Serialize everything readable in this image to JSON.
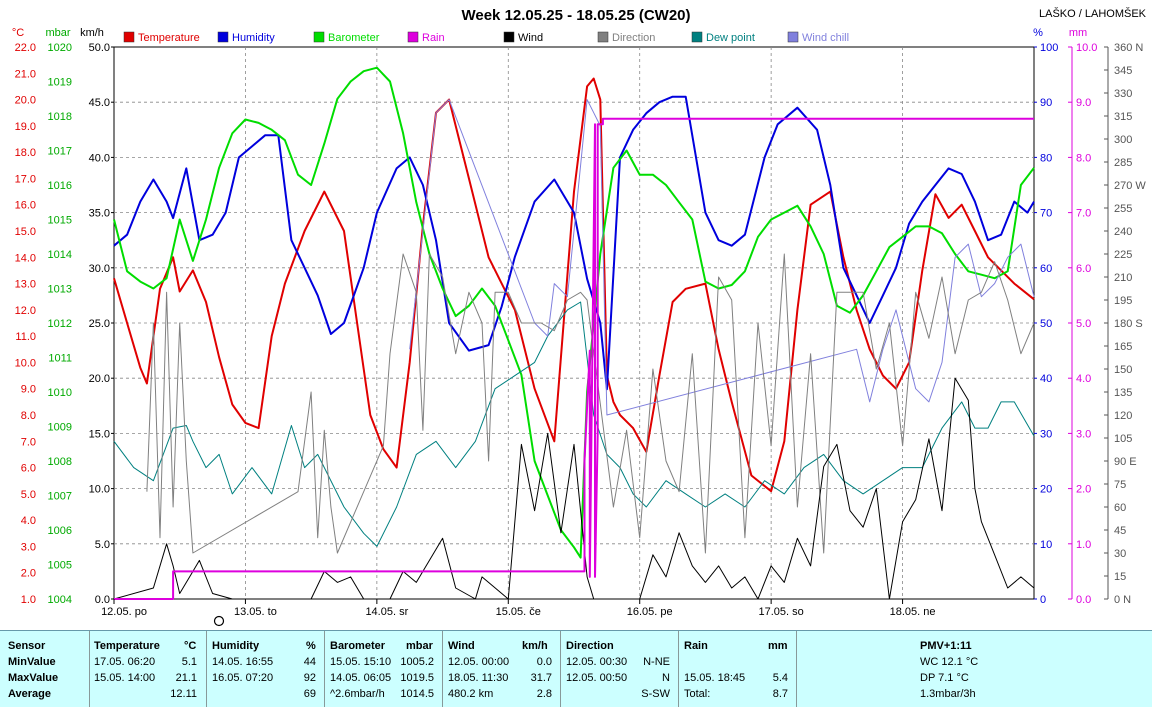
{
  "chart_data": {
    "type": "line",
    "title": "Week 12.05.25 - 18.05.25 (CW20)",
    "station": "LAŠKO / LAHOMŠEK",
    "legend": [
      {
        "label": "Temperature",
        "color": "#e00000"
      },
      {
        "label": "Humidity",
        "color": "#0000dd"
      },
      {
        "label": "Barometer",
        "color": "#00dd00"
      },
      {
        "label": "Rain",
        "color": "#dd00dd"
      },
      {
        "label": "Wind",
        "color": "#000000"
      },
      {
        "label": "Direction",
        "color": "#808080"
      },
      {
        "label": "Dew point",
        "color": "#008080"
      },
      {
        "label": "Wind chill",
        "color": "#8080dd"
      }
    ],
    "x_ticks": [
      "12.05. po",
      "13.05. to",
      "14.05. sr",
      "15.05. če",
      "16.05. pe",
      "17.05. so",
      "18.05. ne"
    ],
    "axes": {
      "temp": {
        "unit": "°C",
        "ylim": [
          1.0,
          22.0
        ],
        "ticks": [
          "22.0",
          "21.0",
          "20.0",
          "19.0",
          "18.0",
          "17.0",
          "16.0",
          "15.0",
          "14.0",
          "13.0",
          "12.0",
          "11.0",
          "10.0",
          "9.0",
          "8.0",
          "7.0",
          "6.0",
          "5.0",
          "4.0",
          "3.0",
          "2.0",
          "1.0"
        ]
      },
      "baro": {
        "unit": "mbar",
        "ylim": [
          1004,
          1020
        ],
        "ticks": [
          "1020",
          "1019",
          "1018",
          "1017",
          "1016",
          "1015",
          "1014",
          "1013",
          "1012",
          "1011",
          "1010",
          "1009",
          "1008",
          "1007",
          "1006",
          "1005",
          "1004"
        ]
      },
      "wind": {
        "unit": "km/h",
        "ylim": [
          0,
          50
        ],
        "ticks": [
          "50.0",
          "45.0",
          "40.0",
          "35.0",
          "30.0",
          "25.0",
          "20.0",
          "15.0",
          "10.0",
          "5.0",
          "0.0"
        ]
      },
      "hum": {
        "unit": "%",
        "ylim": [
          0,
          100
        ],
        "ticks": [
          "100",
          "90",
          "80",
          "70",
          "60",
          "50",
          "40",
          "30",
          "20",
          "10",
          "0"
        ]
      },
      "rain": {
        "unit": "mm",
        "ylim": [
          0,
          10
        ],
        "ticks": [
          "10.0",
          "9.0",
          "8.0",
          "7.0",
          "6.0",
          "5.0",
          "4.0",
          "3.0",
          "2.0",
          "1.0",
          "0.0"
        ]
      },
      "dir": {
        "ylim": [
          0,
          360
        ],
        "ticks": [
          "360 N",
          "345",
          "330",
          "315",
          "300",
          "285",
          "270 W",
          "255",
          "240",
          "225",
          "210",
          "195",
          "180 S",
          "165",
          "150",
          "135",
          "120",
          "105",
          "90 E",
          "75",
          "60",
          "45",
          "30",
          "15",
          "0 N"
        ]
      }
    },
    "x_range_days": [
      0,
      7
    ],
    "series": [
      {
        "name": "Temperature",
        "axis": "temp",
        "color": "#e00000",
        "x": [
          0,
          0.1,
          0.2,
          0.25,
          0.35,
          0.45,
          0.5,
          0.6,
          0.7,
          0.8,
          0.9,
          1.0,
          1.1,
          1.2,
          1.3,
          1.45,
          1.6,
          1.75,
          1.85,
          1.95,
          2.05,
          2.15,
          2.25,
          2.35,
          2.45,
          2.55,
          2.7,
          2.85,
          2.95,
          3.05,
          3.2,
          3.35,
          3.5,
          3.6,
          3.65,
          3.7,
          3.75,
          3.8,
          3.85,
          3.95,
          4.05,
          4.15,
          4.25,
          4.35,
          4.5,
          4.6,
          4.7,
          4.85,
          5.0,
          5.1,
          5.2,
          5.3,
          5.45,
          5.55,
          5.65,
          5.75,
          5.85,
          5.95,
          6.05,
          6.15,
          6.25,
          6.35,
          6.45,
          6.55,
          6.65,
          6.75,
          6.85,
          7.0
        ],
        "y": [
          13.2,
          11.5,
          9.8,
          9.2,
          12.8,
          14.0,
          12.7,
          13.5,
          12.3,
          10.2,
          8.4,
          7.7,
          7.5,
          11.0,
          13.0,
          15.0,
          16.5,
          15.0,
          11.5,
          8.0,
          6.7,
          6.0,
          10.0,
          15.2,
          19.5,
          20.0,
          17.0,
          14.0,
          13.0,
          12.0,
          9.0,
          7.0,
          16.5,
          20.5,
          20.8,
          20.0,
          9.5,
          8.5,
          8.0,
          7.5,
          6.6,
          9.5,
          12.3,
          12.8,
          13.0,
          10.5,
          8.5,
          5.7,
          5.1,
          7.0,
          12.0,
          16.0,
          16.5,
          14.0,
          12.0,
          10.5,
          9.5,
          9.0,
          10.0,
          13.5,
          16.4,
          15.5,
          16.0,
          15.0,
          14.0,
          13.5,
          13.0,
          12.4
        ]
      },
      {
        "name": "Humidity",
        "axis": "hum",
        "color": "#0000dd",
        "x": [
          0,
          0.1,
          0.2,
          0.3,
          0.4,
          0.45,
          0.55,
          0.65,
          0.75,
          0.85,
          0.95,
          1.05,
          1.15,
          1.25,
          1.35,
          1.45,
          1.55,
          1.65,
          1.75,
          1.9,
          2.0,
          2.15,
          2.25,
          2.35,
          2.45,
          2.55,
          2.7,
          2.85,
          2.95,
          3.05,
          3.2,
          3.35,
          3.5,
          3.6,
          3.7,
          3.75,
          3.85,
          3.95,
          4.05,
          4.15,
          4.25,
          4.35,
          4.5,
          4.6,
          4.7,
          4.8,
          4.95,
          5.05,
          5.2,
          5.35,
          5.45,
          5.55,
          5.65,
          5.75,
          5.85,
          5.95,
          6.05,
          6.15,
          6.25,
          6.35,
          6.45,
          6.55,
          6.65,
          6.75,
          6.85,
          6.95,
          7.0
        ],
        "y": [
          64,
          66,
          72,
          76,
          72,
          69,
          78,
          65,
          66,
          70,
          80,
          82,
          84,
          84,
          65,
          60,
          55,
          48,
          50,
          60,
          70,
          78,
          80,
          75,
          65,
          50,
          45,
          46,
          53,
          62,
          72,
          76,
          70,
          58,
          50,
          38,
          80,
          85,
          88,
          90,
          91,
          91,
          70,
          65,
          64,
          66,
          80,
          86,
          89,
          85,
          75,
          60,
          55,
          50,
          55,
          60,
          68,
          72,
          75,
          78,
          77,
          72,
          65,
          66,
          72,
          70,
          72
        ]
      },
      {
        "name": "Barometer",
        "axis": "baro",
        "color": "#00dd00",
        "x": [
          0,
          0.1,
          0.2,
          0.3,
          0.4,
          0.5,
          0.6,
          0.7,
          0.8,
          0.9,
          1.0,
          1.1,
          1.2,
          1.3,
          1.4,
          1.5,
          1.6,
          1.7,
          1.8,
          1.9,
          2.0,
          2.1,
          2.2,
          2.3,
          2.4,
          2.5,
          2.6,
          2.7,
          2.8,
          2.9,
          3.0,
          3.1,
          3.2,
          3.3,
          3.4,
          3.5,
          3.55,
          3.6,
          3.7,
          3.8,
          3.9,
          4.0,
          4.1,
          4.2,
          4.3,
          4.4,
          4.5,
          4.6,
          4.7,
          4.8,
          4.9,
          5.0,
          5.1,
          5.2,
          5.3,
          5.4,
          5.5,
          5.6,
          5.7,
          5.8,
          5.9,
          6.0,
          6.1,
          6.2,
          6.3,
          6.4,
          6.5,
          6.6,
          6.7,
          6.8,
          6.9,
          7.0
        ],
        "y": [
          1015,
          1013.5,
          1013.2,
          1013.0,
          1013.3,
          1015.0,
          1013.8,
          1015.0,
          1016.5,
          1017.5,
          1017.9,
          1017.8,
          1017.6,
          1017.3,
          1016.3,
          1016.0,
          1017.2,
          1018.5,
          1019.0,
          1019.3,
          1019.4,
          1019.0,
          1017.5,
          1015.5,
          1014.0,
          1013.0,
          1012.2,
          1012.5,
          1013.0,
          1012.5,
          1011.5,
          1010.5,
          1008.0,
          1007.0,
          1006.0,
          1005.5,
          1005.2,
          1010.0,
          1014.0,
          1016.5,
          1017.0,
          1016.3,
          1016.3,
          1016.0,
          1015.5,
          1015.0,
          1013.2,
          1013.0,
          1013.1,
          1013.5,
          1014.5,
          1015.0,
          1015.2,
          1015.4,
          1014.8,
          1014.0,
          1012.5,
          1012.3,
          1012.8,
          1013.5,
          1014.2,
          1014.5,
          1014.8,
          1014.8,
          1014.6,
          1014.0,
          1013.5,
          1013.4,
          1013.3,
          1013.5,
          1016.0,
          1016.5
        ]
      },
      {
        "name": "Dew point",
        "axis": "temp",
        "color": "#008080",
        "x": [
          0,
          0.15,
          0.3,
          0.45,
          0.55,
          0.6,
          0.7,
          0.8,
          0.9,
          1.05,
          1.2,
          1.35,
          1.45,
          1.55,
          1.75,
          1.9,
          2.0,
          2.15,
          2.3,
          2.45,
          2.6,
          2.75,
          2.9,
          3.05,
          3.2,
          3.3,
          3.45,
          3.55,
          3.65,
          3.75,
          3.85,
          3.95,
          4.05,
          4.2,
          4.35,
          4.5,
          4.65,
          4.8,
          4.95,
          5.1,
          5.25,
          5.4,
          5.55,
          5.7,
          5.85,
          6.0,
          6.15,
          6.3,
          6.45,
          6.55,
          6.65,
          6.75,
          6.85,
          7.0
        ],
        "y": [
          7.0,
          6.0,
          5.5,
          7.5,
          7.6,
          7.0,
          6.0,
          6.5,
          5.0,
          6.0,
          5.0,
          7.6,
          6.0,
          6.5,
          4.5,
          3.5,
          3.0,
          4.5,
          6.5,
          7.0,
          6.0,
          7.0,
          9.0,
          9.5,
          10.0,
          11.0,
          12.0,
          12.3,
          8.0,
          6.5,
          6.0,
          5.0,
          4.5,
          5.5,
          5.0,
          4.5,
          5.0,
          4.5,
          5.5,
          5.0,
          6.0,
          6.5,
          5.5,
          5.0,
          5.5,
          6.0,
          6.0,
          7.5,
          8.5,
          7.5,
          7.5,
          8.5,
          8.5,
          7.2
        ]
      },
      {
        "name": "Wind chill",
        "axis": "temp",
        "color": "#8080dd",
        "x": [
          2.25,
          2.35,
          2.45,
          2.55,
          3.2,
          3.3,
          3.35,
          3.45,
          3.55,
          3.6,
          3.65,
          3.7,
          3.75,
          5.65,
          5.75,
          5.85,
          5.95,
          6.1,
          6.2,
          6.3,
          6.4,
          6.5,
          6.6,
          6.7,
          6.8,
          6.9,
          7.0
        ],
        "y": [
          10.5,
          15.0,
          19.5,
          20.0,
          11.5,
          11.0,
          13.0,
          12.5,
          17.5,
          20.0,
          19.5,
          19.0,
          8.0,
          10.5,
          8.5,
          10.5,
          12.0,
          9.0,
          8.5,
          10.0,
          14.0,
          14.5,
          12.5,
          13.0,
          14.0,
          14.5,
          12.5
        ]
      },
      {
        "name": "Direction",
        "axis": "dir",
        "color": "#808080",
        "x": [
          0.25,
          0.3,
          0.35,
          0.4,
          0.45,
          0.5,
          0.55,
          0.6,
          1.4,
          1.5,
          1.55,
          1.6,
          1.65,
          1.7,
          2.05,
          2.1,
          2.2,
          2.3,
          2.35,
          2.4,
          2.5,
          2.6,
          2.7,
          2.8,
          2.85,
          2.9,
          3.0,
          3.1,
          3.25,
          3.35,
          3.45,
          3.55,
          3.6,
          3.8,
          3.9,
          4.0,
          4.1,
          4.2,
          4.3,
          4.4,
          4.5,
          4.6,
          4.7,
          4.8,
          4.9,
          5.0,
          5.1,
          5.2,
          5.3,
          5.4,
          5.5,
          5.6,
          5.7,
          5.8,
          5.9,
          6.0,
          6.1,
          6.2,
          6.3,
          6.4,
          6.5,
          6.6,
          6.7,
          6.8,
          6.9,
          7.0
        ],
        "y": [
          70,
          180,
          40,
          200,
          60,
          180,
          90,
          30,
          70,
          135,
          40,
          110,
          60,
          30,
          100,
          160,
          225,
          200,
          110,
          225,
          210,
          160,
          200,
          180,
          90,
          200,
          200,
          180,
          180,
          175,
          195,
          200,
          195,
          60,
          110,
          40,
          150,
          90,
          70,
          160,
          30,
          210,
          195,
          40,
          180,
          100,
          225,
          60,
          160,
          30,
          200,
          200,
          200,
          150,
          180,
          100,
          200,
          170,
          210,
          160,
          195,
          200,
          220,
          195,
          160,
          180
        ]
      },
      {
        "name": "Wind",
        "axis": "wind",
        "color": "#000000",
        "x": [
          0,
          0.3,
          0.4,
          0.45,
          0.5,
          0.6,
          0.65,
          0.75,
          0.9,
          1.1,
          1.5,
          1.6,
          1.7,
          1.8,
          1.9,
          2.1,
          2.2,
          2.3,
          2.5,
          2.6,
          2.75,
          2.8,
          3.0,
          3.1,
          3.2,
          3.3,
          3.4,
          3.5,
          3.6,
          3.65,
          4.0,
          4.1,
          4.2,
          4.3,
          4.4,
          4.5,
          4.6,
          4.7,
          4.8,
          4.9,
          5.0,
          5.1,
          5.2,
          5.3,
          5.4,
          5.5,
          5.6,
          5.7,
          5.8,
          5.9,
          6.0,
          6.1,
          6.2,
          6.3,
          6.4,
          6.5,
          6.55,
          6.6,
          6.7,
          6.8,
          6.9,
          7.0
        ],
        "y": [
          0,
          1.0,
          5.0,
          3.0,
          0.5,
          2.5,
          3.5,
          0.5,
          0,
          0,
          0,
          2.5,
          1.5,
          2.0,
          0,
          0,
          2.5,
          1.5,
          5.5,
          1.0,
          0,
          2.0,
          0,
          14.0,
          8.0,
          15.0,
          6.0,
          14.0,
          2.0,
          0,
          0,
          4.0,
          2.0,
          6.0,
          3.0,
          1.5,
          3.0,
          1.0,
          2.0,
          0,
          3.0,
          1.5,
          5.5,
          3.0,
          12.0,
          14.0,
          8.0,
          6.5,
          10.0,
          0,
          7.0,
          9.0,
          14.5,
          8.0,
          20.0,
          18.0,
          10.0,
          7.0,
          4.0,
          1.0,
          2.0,
          1.0
        ]
      },
      {
        "name": "Rain",
        "axis": "rain",
        "color": "#dd00dd",
        "x": [
          0,
          0.45,
          0.45,
          3.58,
          3.58,
          3.62,
          3.62,
          3.66,
          3.66,
          3.68,
          3.68,
          3.72,
          3.72,
          7.0
        ],
        "y": [
          0,
          0,
          0.5,
          0.5,
          2.5,
          4.5,
          0.4,
          8.6,
          0.4,
          3.0,
          8.6,
          8.6,
          8.7,
          8.7
        ]
      }
    ]
  },
  "footer": {
    "sensor": {
      "header": "Sensor",
      "min": "MinValue",
      "max": "MaxValue",
      "avg": "Average"
    },
    "temperature": {
      "header": "Temperature",
      "unit": "°C",
      "min_time": "17.05.  06:20",
      "min_val": "5.1",
      "max_time": "15.05.  14:00",
      "max_val": "21.1",
      "avg_val": "12.11"
    },
    "humidity": {
      "header": "Humidity",
      "unit": "%",
      "min_time": "14.05.  16:55",
      "min_val": "44",
      "max_time": "16.05.  07:20",
      "max_val": "92",
      "avg_val": "69"
    },
    "barometer": {
      "header": "Barometer",
      "unit": "mbar",
      "min_time": "15.05.  15:10",
      "min_val": "1005.2",
      "max_time": "14.05.  06:05",
      "max_val": "1019.5",
      "avg_label": "^2.6mbar/h",
      "avg_val": "1014.5"
    },
    "wind": {
      "header": "Wind",
      "unit": "km/h",
      "min_time": "12.05.  00:00",
      "min_val": "0.0",
      "max_time": "18.05.  11:30",
      "max_val": "31.7",
      "avg_label": "480.2 km",
      "avg_val": "2.8"
    },
    "direction": {
      "header": "Direction",
      "min_time": "12.05.  00:30",
      "min_val": "N-NE",
      "max_time": "12.05.  00:50",
      "max_val": "N",
      "avg_val": "S-SW"
    },
    "rain": {
      "header": "Rain",
      "unit": "mm",
      "max_time": "15.05.  18:45",
      "max_val": "5.4",
      "avg_label": "Total:",
      "avg_val": "8.7"
    },
    "pmv": {
      "header": "PMV+1:11",
      "wc": "WC 12.1 °C",
      "dp": "DP 7.1 °C",
      "trend": "1.3mbar/3h"
    }
  }
}
